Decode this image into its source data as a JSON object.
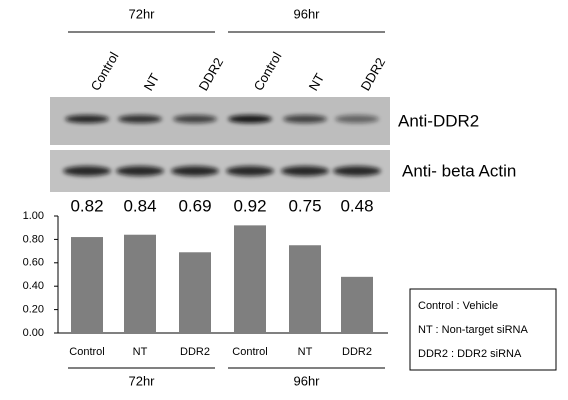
{
  "chart_data": {
    "type": "bar",
    "groups": [
      "72hr",
      "96hr"
    ],
    "blots": [
      "Anti-DDR2",
      "Anti- beta Actin"
    ],
    "categories": [
      "Control",
      "NT",
      "DDR2",
      "Control",
      "NT",
      "DDR2"
    ],
    "values": [
      0.82,
      0.84,
      0.69,
      0.92,
      0.75,
      0.48
    ],
    "color": "#7f7f7f",
    "ylim": [
      0,
      1
    ],
    "yticks": [
      {
        "value": 0,
        "label": "0.00"
      },
      {
        "value": 0.2,
        "label": "0.20"
      },
      {
        "value": 0.4,
        "label": "0.40"
      },
      {
        "value": 0.6,
        "label": "0.60"
      },
      {
        "value": 0.8,
        "label": "0.80"
      },
      {
        "value": 1,
        "label": "1.00"
      }
    ],
    "grid": false,
    "legend_notes": [
      "Control : Vehicle",
      "NT : Non-target siRNA",
      "DDR2 : DDR2 siRNA"
    ]
  }
}
